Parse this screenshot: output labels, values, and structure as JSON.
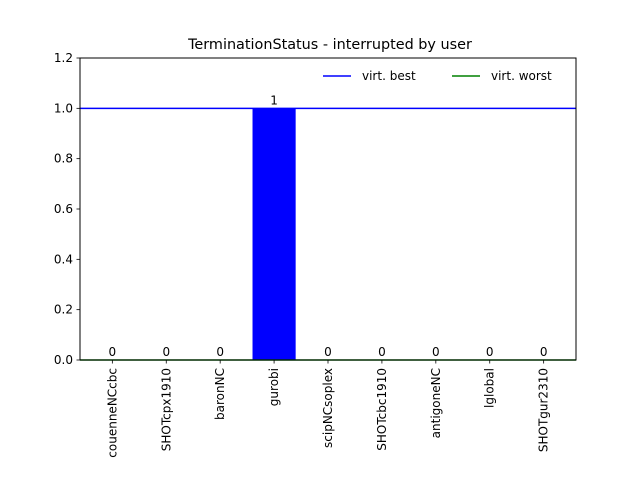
{
  "chart_data": {
    "type": "bar",
    "title": "TerminationStatus - interrupted by user",
    "xlabel": "",
    "ylabel": "",
    "categories": [
      "couenneNCcbc",
      "SHOTcpx1910",
      "baronNC",
      "gurobi",
      "scipNCsoplex",
      "SHOTcbc1910",
      "antigoneNC",
      "lglobal",
      "SHOTgur2310"
    ],
    "values": [
      0,
      0,
      0,
      1,
      0,
      0,
      0,
      0,
      0
    ],
    "data_labels": [
      "0",
      "0",
      "0",
      "1",
      "0",
      "0",
      "0",
      "0",
      "0"
    ],
    "ylim": [
      0,
      1.2
    ],
    "yticks": [
      0.0,
      0.2,
      0.4,
      0.6,
      0.8,
      1.0,
      1.2
    ],
    "ytick_labels": [
      "0.0",
      "0.2",
      "0.4",
      "0.6",
      "0.8",
      "1.0",
      "1.2"
    ],
    "bar_color": "#0000ff",
    "reference_lines": [
      {
        "name": "virt. best",
        "value": 1,
        "color": "#0000ff"
      },
      {
        "name": "virt. worst",
        "value": 0,
        "color": "#008000"
      }
    ],
    "legend": {
      "position": "top-right",
      "columns": 2
    },
    "grid": false
  }
}
